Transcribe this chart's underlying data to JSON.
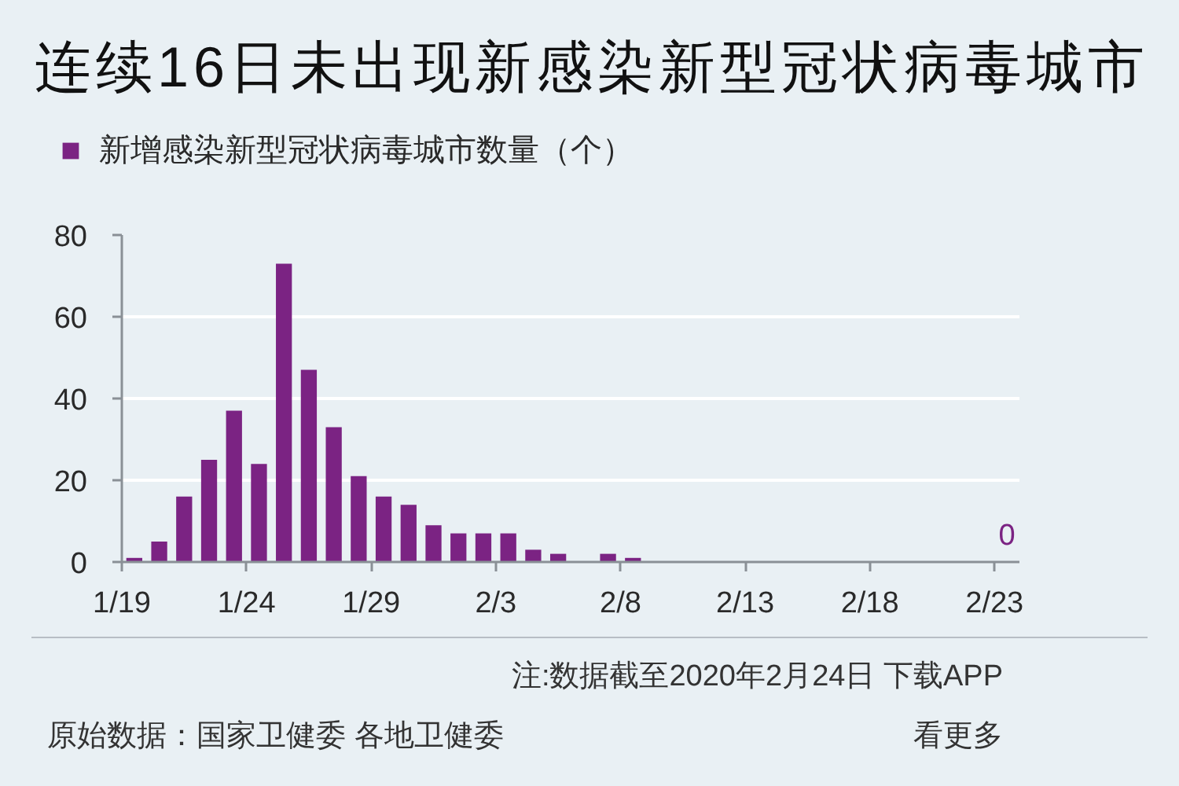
{
  "chart_data": {
    "type": "bar",
    "title": "连续16日未出现新感染新型冠状病毒城市",
    "x": [
      "2020-01-19T12:00",
      "2020-01-20T12:00",
      "2020-01-21T12:00",
      "2020-01-22T12:00",
      "2020-01-23T12:00",
      "2020-01-24T12:00",
      "2020-01-25T12:00",
      "2020-01-26T12:00",
      "2020-01-27T12:00",
      "2020-01-28T12:00",
      "2020-01-29T12:00",
      "2020-01-30T12:00",
      "2020-01-31T12:00",
      "2020-02-01T12:00",
      "2020-02-02T12:00",
      "2020-02-03T12:00",
      "2020-02-04T12:00",
      "2020-02-05T12:00",
      "2020-02-06T12:00",
      "2020-02-07T12:00",
      "2020-02-08T12:00",
      "2020-02-09T12:00",
      "2020-02-10T12:00",
      "2020-02-11T12:00",
      "2020-02-12T12:00",
      "2020-02-13T12:00",
      "2020-02-14T12:00",
      "2020-02-15T12:00",
      "2020-02-16T12:00",
      "2020-02-17T12:00",
      "2020-02-18T12:00",
      "2020-02-19T12:00",
      "2020-02-20T12:00",
      "2020-02-21T12:00",
      "2020-02-22T12:00",
      "2020-02-23T12:00"
    ],
    "series": [
      {
        "name": "新增感染新型冠状病毒城市数量（个）",
        "color": "#7b2383",
        "values": [
          1,
          5,
          16,
          25,
          37,
          24,
          73,
          47,
          33,
          21,
          16,
          14,
          9,
          7,
          7,
          7,
          3,
          2,
          0,
          2,
          1,
          0,
          0,
          0,
          0,
          0,
          0,
          0,
          0,
          0,
          0,
          0,
          0,
          0,
          0,
          0
        ],
        "value_labels": [
          null,
          null,
          null,
          null,
          null,
          null,
          null,
          null,
          null,
          null,
          null,
          null,
          null,
          null,
          null,
          null,
          null,
          null,
          null,
          null,
          null,
          null,
          null,
          null,
          null,
          null,
          null,
          null,
          null,
          null,
          null,
          null,
          null,
          null,
          null,
          "0"
        ]
      }
    ],
    "xlim": [
      "2020-01-19",
      "2020-02-24"
    ],
    "xticks": [
      {
        "value": "2020-01-19",
        "label": "1/19"
      },
      {
        "value": "2020-01-24",
        "label": "1/24"
      },
      {
        "value": "2020-01-29",
        "label": "1/29"
      },
      {
        "value": "2020-02-03",
        "label": "2/3"
      },
      {
        "value": "2020-02-08",
        "label": "2/8"
      },
      {
        "value": "2020-02-13",
        "label": "2/13"
      },
      {
        "value": "2020-02-18",
        "label": "2/18"
      },
      {
        "value": "2020-02-23",
        "label": "2/23"
      }
    ],
    "ylim": [
      0,
      80
    ],
    "yticks": [
      0,
      20,
      40,
      60,
      80
    ],
    "grid": "y",
    "legend": "top left",
    "annotations": [
      "注:数据截至2020年2月24日  下载APP",
      "原始数据：国家卫健委 各地卫健委",
      "看更多"
    ]
  }
}
